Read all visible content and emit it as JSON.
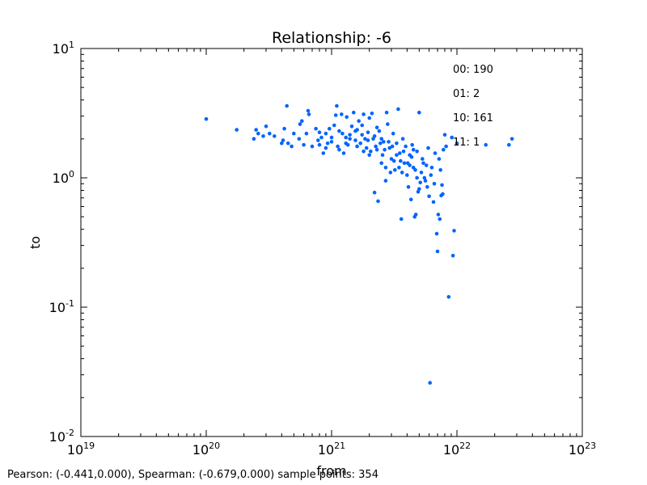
{
  "chart_data": {
    "type": "scatter",
    "title": "Relationship: -6",
    "xlabel": "from",
    "ylabel": "to",
    "xscale": "log",
    "yscale": "log",
    "xlim": [
      1e+19,
      1e+23
    ],
    "ylim": [
      0.01,
      10
    ],
    "x_ticks": [
      {
        "base": "10",
        "exp": "19"
      },
      {
        "base": "10",
        "exp": "20"
      },
      {
        "base": "10",
        "exp": "21"
      },
      {
        "base": "10",
        "exp": "22"
      },
      {
        "base": "10",
        "exp": "23"
      }
    ],
    "y_ticks": [
      {
        "base": "10",
        "exp": "-2"
      },
      {
        "base": "10",
        "exp": "-1"
      },
      {
        "base": "10",
        "exp": "0"
      },
      {
        "base": "10",
        "exp": "1"
      }
    ],
    "grid": false,
    "marker_color": "#0064ff",
    "annotations": [
      "00: 190",
      "01: 2",
      "10: 161",
      "11: 1"
    ],
    "points": [
      [
        1e+20,
        2.85
      ],
      [
        1.75e+20,
        2.35
      ],
      [
        2.4e+20,
        2.0
      ],
      [
        2.5e+20,
        2.35
      ],
      [
        2.6e+20,
        2.2
      ],
      [
        2.85e+20,
        2.1
      ],
      [
        3e+20,
        2.5
      ],
      [
        3.2e+20,
        2.2
      ],
      [
        3.5e+20,
        2.1
      ],
      [
        4e+20,
        1.85
      ],
      [
        4.1e+20,
        1.95
      ],
      [
        4.2e+20,
        2.4
      ],
      [
        4.4e+20,
        3.6
      ],
      [
        4.5e+20,
        1.85
      ],
      [
        4.8e+20,
        1.75
      ],
      [
        5e+20,
        2.2
      ],
      [
        5.5e+20,
        2.0
      ],
      [
        5.6e+20,
        2.6
      ],
      [
        5.8e+20,
        2.75
      ],
      [
        6e+20,
        1.8
      ],
      [
        6.3e+20,
        2.2
      ],
      [
        6.5e+20,
        3.3
      ],
      [
        6.6e+20,
        3.1
      ],
      [
        7e+20,
        1.75
      ],
      [
        7.5e+20,
        2.4
      ],
      [
        7.8e+20,
        1.95
      ],
      [
        8e+20,
        2.25
      ],
      [
        8.3e+20,
        2.05
      ],
      [
        8.6e+20,
        1.55
      ],
      [
        9e+20,
        2.2
      ],
      [
        9.3e+20,
        1.85
      ],
      [
        9.6e+20,
        2.4
      ],
      [
        1e+21,
        1.9
      ],
      [
        1.05e+21,
        2.55
      ],
      [
        1.08e+21,
        3.05
      ],
      [
        1.1e+21,
        3.6
      ],
      [
        1.12e+21,
        1.75
      ],
      [
        1.15e+21,
        2.3
      ],
      [
        1.2e+21,
        3.1
      ],
      [
        1.25e+21,
        1.55
      ],
      [
        1.3e+21,
        2.05
      ],
      [
        1.32e+21,
        2.95
      ],
      [
        1.35e+21,
        1.8
      ],
      [
        1.4e+21,
        2.15
      ],
      [
        1.45e+21,
        2.5
      ],
      [
        1.5e+21,
        3.2
      ],
      [
        1.55e+21,
        1.95
      ],
      [
        1.6e+21,
        2.35
      ],
      [
        1.65e+21,
        2.75
      ],
      [
        1.7e+21,
        1.85
      ],
      [
        1.75e+21,
        2.55
      ],
      [
        1.8e+21,
        3.1
      ],
      [
        1.85e+21,
        2.0
      ],
      [
        1.9e+21,
        1.7
      ],
      [
        1.95e+21,
        2.25
      ],
      [
        2e+21,
        2.9
      ],
      [
        2.05e+21,
        1.6
      ],
      [
        2.1e+21,
        3.15
      ],
      [
        2.15e+21,
        2.0
      ],
      [
        2.2e+21,
        0.77
      ],
      [
        2.25e+21,
        1.75
      ],
      [
        2.3e+21,
        2.45
      ],
      [
        2.35e+21,
        0.66
      ],
      [
        2.4e+21,
        2.3
      ],
      [
        2.5e+21,
        2.0
      ],
      [
        2.55e+21,
        1.5
      ],
      [
        2.6e+21,
        1.9
      ],
      [
        2.7e+21,
        0.95
      ],
      [
        2.75e+21,
        3.2
      ],
      [
        2.8e+21,
        2.6
      ],
      [
        2.9e+21,
        1.7
      ],
      [
        3e+21,
        1.4
      ],
      [
        3.1e+21,
        2.2
      ],
      [
        3.2e+21,
        1.15
      ],
      [
        3.3e+21,
        1.85
      ],
      [
        3.4e+21,
        3.4
      ],
      [
        3.5e+21,
        1.55
      ],
      [
        3.6e+21,
        0.48
      ],
      [
        3.7e+21,
        2.0
      ],
      [
        3.8e+21,
        1.3
      ],
      [
        3.9e+21,
        1.75
      ],
      [
        4e+21,
        1.05
      ],
      [
        4.1e+21,
        0.85
      ],
      [
        4.2e+21,
        1.5
      ],
      [
        4.3e+21,
        0.68
      ],
      [
        4.4e+21,
        1.8
      ],
      [
        4.5e+21,
        1.2
      ],
      [
        4.6e+21,
        0.5
      ],
      [
        4.7e+21,
        0.52
      ],
      [
        4.8e+21,
        1.6
      ],
      [
        4.9e+21,
        0.78
      ],
      [
        5e+21,
        3.2
      ],
      [
        5.1e+21,
        0.92
      ],
      [
        5.3e+21,
        1.4
      ],
      [
        5.5e+21,
        1.0
      ],
      [
        5.7e+21,
        1.25
      ],
      [
        5.9e+21,
        1.7
      ],
      [
        6e+21,
        0.72
      ],
      [
        6.1e+21,
        0.026
      ],
      [
        6.3e+21,
        1.2
      ],
      [
        6.5e+21,
        0.65
      ],
      [
        6.7e+21,
        1.55
      ],
      [
        6.9e+21,
        0.37
      ],
      [
        7e+21,
        0.27
      ],
      [
        7.1e+21,
        0.52
      ],
      [
        7.3e+21,
        0.48
      ],
      [
        7.5e+21,
        0.73
      ],
      [
        7.6e+21,
        0.88
      ],
      [
        7.8e+21,
        1.65
      ],
      [
        8e+21,
        2.15
      ],
      [
        8.6e+21,
        0.12
      ],
      [
        9.1e+21,
        2.05
      ],
      [
        9.3e+21,
        0.25
      ],
      [
        9.5e+21,
        0.39
      ],
      [
        1e+22,
        1.85
      ],
      [
        1.7e+22,
        1.8
      ],
      [
        2.6e+22,
        1.8
      ],
      [
        2.75e+22,
        2.0
      ],
      [
        1.22e+21,
        2.2
      ],
      [
        1.4e+21,
        2.0
      ],
      [
        1.55e+21,
        2.3
      ],
      [
        1.75e+21,
        2.15
      ],
      [
        1.95e+21,
        1.95
      ],
      [
        2.2e+21,
        2.1
      ],
      [
        2.45e+21,
        1.85
      ],
      [
        2.65e+21,
        1.65
      ],
      [
        2.85e+21,
        1.9
      ],
      [
        3.05e+21,
        1.75
      ],
      [
        3.3e+21,
        1.5
      ],
      [
        3.55e+21,
        1.35
      ],
      [
        3.75e+21,
        1.6
      ],
      [
        4.05e+21,
        1.3
      ],
      [
        4.35e+21,
        1.45
      ],
      [
        4.65e+21,
        1.15
      ],
      [
        5.2e+21,
        1.1
      ],
      [
        5.6e+21,
        0.95
      ],
      [
        5.8e+21,
        0.85
      ],
      [
        6.2e+21,
        1.05
      ],
      [
        6.6e+21,
        0.9
      ],
      [
        7.2e+21,
        1.4
      ],
      [
        7.4e+21,
        1.15
      ],
      [
        7.7e+21,
        0.75
      ],
      [
        8.2e+21,
        1.75
      ],
      [
        1e+21,
        2.05
      ],
      [
        9e+20,
        1.7
      ],
      [
        8e+20,
        1.8
      ],
      [
        1.15e+21,
        1.65
      ],
      [
        1.3e+21,
        1.85
      ],
      [
        1.6e+21,
        1.75
      ],
      [
        1.8e+21,
        1.6
      ],
      [
        2e+21,
        1.5
      ],
      [
        2.3e+21,
        1.65
      ],
      [
        2.5e+21,
        1.3
      ],
      [
        2.7e+21,
        1.2
      ],
      [
        2.95e+21,
        1.1
      ],
      [
        3.15e+21,
        1.35
      ],
      [
        3.45e+21,
        1.2
      ],
      [
        3.65e+21,
        1.1
      ],
      [
        4.2e+21,
        1.25
      ],
      [
        4.5e+21,
        1.65
      ],
      [
        4.8e+21,
        1.0
      ],
      [
        5e+21,
        0.82
      ],
      [
        5.4e+21,
        1.3
      ]
    ]
  },
  "footer": {
    "text": "Pearson: (-0.441,0.000), Spearman: (-0.679,0.000) sample points: 354"
  }
}
